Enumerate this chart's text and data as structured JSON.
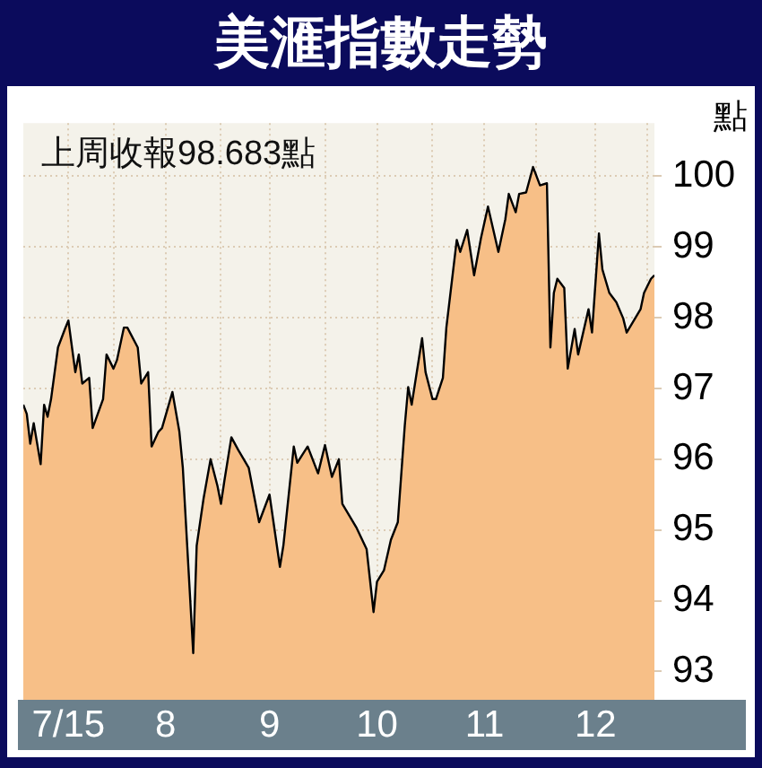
{
  "chart_data": {
    "type": "area",
    "title": "美滙指數走勢",
    "ylabel": "點",
    "annotations": [
      "上周收報98.683點"
    ],
    "x": [
      "2015-07-06",
      "2015-07-07",
      "2015-07-08",
      "2015-07-09",
      "2015-07-11",
      "2015-07-12",
      "2015-07-13",
      "2015-07-14",
      "2015-07-16",
      "2015-07-18",
      "2015-07-19",
      "2015-07-21",
      "2015-07-22",
      "2015-07-23",
      "2015-07-25",
      "2015-07-26",
      "2015-07-29",
      "2015-07-30",
      "2015-08-01",
      "2015-08-02",
      "2015-08-04",
      "2015-08-05",
      "2015-08-08",
      "2015-08-09",
      "2015-08-11",
      "2015-08-12",
      "2015-08-14",
      "2015-08-15",
      "2015-08-18",
      "2015-08-20",
      "2015-08-21",
      "2015-08-24",
      "2015-08-25",
      "2015-08-27",
      "2015-08-29",
      "2015-08-31",
      "2015-09-01",
      "2015-09-02",
      "2015-09-04",
      "2015-09-06",
      "2015-09-09",
      "2015-09-12",
      "2015-09-15",
      "2015-09-18",
      "2015-09-19",
      "2015-09-22",
      "2015-09-23",
      "2015-09-26",
      "2015-09-29",
      "2015-10-01",
      "2015-10-03",
      "2015-10-05",
      "2015-10-06",
      "2015-10-10",
      "2015-10-13",
      "2015-10-15",
      "2015-10-16",
      "2015-10-18",
      "2015-10-20",
      "2015-10-22",
      "2015-10-24",
      "2015-10-25",
      "2015-10-26",
      "2015-10-29",
      "2015-10-30",
      "2015-11-01",
      "2015-11-02",
      "2015-11-04",
      "2015-11-05",
      "2015-11-08",
      "2015-11-09",
      "2015-11-11",
      "2015-11-13",
      "2015-11-15",
      "2015-11-17",
      "2015-11-20",
      "2015-11-22",
      "2015-11-23",
      "2015-11-25",
      "2015-11-26",
      "2015-11-28",
      "2015-11-29",
      "2015-11-30",
      "2015-12-02",
      "2015-12-04",
      "2015-12-05",
      "2015-12-06",
      "2015-12-07",
      "2015-12-09",
      "2015-12-10",
      "2015-12-12",
      "2015-12-13",
      "2015-12-16",
      "2015-12-17",
      "2015-12-19",
      "2015-12-20",
      "2015-12-22",
      "2015-12-24",
      "2015-12-26",
      "2015-12-27",
      "2015-12-31",
      "2016-01-01",
      "2016-01-03",
      "2016-01-04"
    ],
    "series": [
      {
        "color": "#f7bf87",
        "values": [
          96.77,
          96.64,
          96.22,
          96.51,
          95.93,
          96.77,
          96.6,
          96.85,
          97.58,
          97.84,
          97.96,
          97.23,
          97.48,
          97.07,
          97.15,
          96.44,
          96.85,
          97.48,
          97.28,
          97.4,
          97.86,
          97.86,
          97.58,
          97.07,
          97.23,
          96.18,
          96.39,
          96.44,
          96.95,
          96.39,
          95.88,
          93.26,
          94.78,
          95.45,
          96.0,
          95.62,
          95.37,
          95.7,
          96.31,
          96.13,
          95.88,
          95.11,
          95.5,
          94.48,
          94.78,
          96.18,
          95.95,
          96.18,
          95.8,
          96.2,
          95.75,
          96.0,
          95.37,
          95.04,
          94.73,
          93.84,
          94.27,
          94.43,
          94.86,
          95.11,
          96.47,
          97.02,
          96.77,
          97.71,
          97.23,
          96.85,
          96.85,
          97.15,
          97.86,
          99.1,
          98.93,
          99.24,
          98.6,
          99.13,
          99.57,
          98.93,
          99.39,
          99.75,
          99.49,
          99.75,
          99.77,
          99.95,
          100.13,
          99.87,
          99.9,
          97.58,
          98.35,
          98.55,
          98.42,
          97.28,
          97.84,
          97.48,
          98.12,
          97.79,
          99.19,
          98.68,
          98.35,
          98.22,
          97.99,
          97.79,
          98.12,
          98.35,
          98.55,
          98.6
        ]
      }
    ],
    "xlim": [
      "2015-07-06",
      "2016-01-04"
    ],
    "xticks": [
      {
        "value": "2015-07-19",
        "label": "7/15"
      },
      {
        "value": "2015-08-01",
        "label": null
      },
      {
        "value": "2015-08-16",
        "label": "8"
      },
      {
        "value": "2015-09-01",
        "label": null
      },
      {
        "value": "2015-09-15",
        "label": "9"
      },
      {
        "value": "2015-10-01",
        "label": null
      },
      {
        "value": "2015-10-16",
        "label": "10"
      },
      {
        "value": "2015-11-01",
        "label": null
      },
      {
        "value": "2015-11-16",
        "label": "11"
      },
      {
        "value": "2015-12-01",
        "label": null
      },
      {
        "value": "2015-12-18",
        "label": "12"
      },
      {
        "value": "2016-01-02",
        "label": null
      }
    ],
    "ylim": [
      92.6,
      100.75
    ],
    "yticks": [
      93,
      94,
      95,
      96,
      97,
      98,
      99,
      100
    ],
    "grid": true,
    "legend": false,
    "marker": "none",
    "line_style": "solid"
  }
}
